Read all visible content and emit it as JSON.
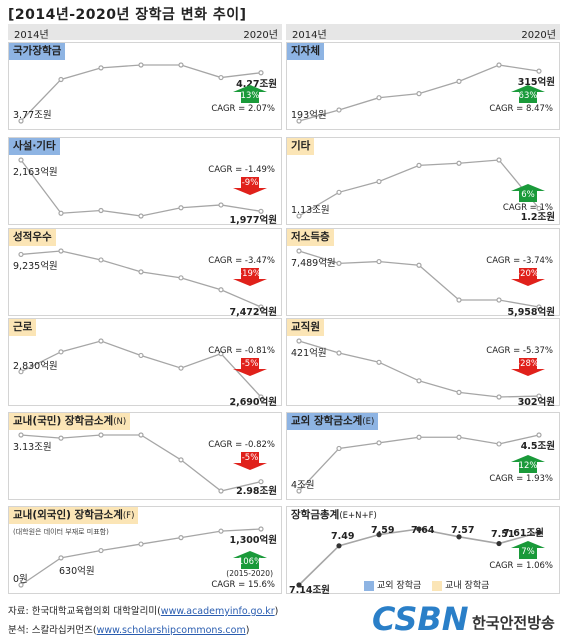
{
  "title": "[2014년-2020년 장학금 변화 추이]",
  "col_start": "2014년",
  "col_end": "2020년",
  "chart_data": [
    {
      "id": "national",
      "type": "line",
      "title": "국가장학금",
      "title_style": "blue",
      "x": [
        2014,
        2015,
        2016,
        2017,
        2018,
        2019,
        2020
      ],
      "values": [
        3.77,
        4.2,
        4.32,
        4.35,
        4.35,
        4.22,
        4.27
      ],
      "unit": "조원",
      "start_label": "3.77조원",
      "end_label": "4.27조원",
      "change": "13%",
      "direction": "up",
      "cagr": "CAGR = 2.07%"
    },
    {
      "id": "local_gov",
      "type": "line",
      "title": "지자체",
      "title_style": "blue",
      "x": [
        2014,
        2015,
        2016,
        2017,
        2018,
        2019,
        2020
      ],
      "values": [
        193,
        220,
        250,
        260,
        290,
        330,
        315
      ],
      "unit": "억원",
      "start_label": "193억원",
      "end_label": "315억원",
      "change": "63%",
      "direction": "up",
      "cagr": "CAGR = 8.47%"
    },
    {
      "id": "private",
      "type": "line",
      "title": "사설·기타",
      "title_style": "blue",
      "x": [
        2014,
        2015,
        2016,
        2017,
        2018,
        2019,
        2020
      ],
      "values": [
        2163,
        1970,
        1980,
        1960,
        1990,
        2000,
        1977
      ],
      "unit": "억원",
      "start_label": "2,163억원",
      "end_label": "1,977억원",
      "change": "-9%",
      "direction": "down",
      "cagr": "CAGR = -1.49%"
    },
    {
      "id": "other",
      "type": "line",
      "title": "기타",
      "title_style": "tan",
      "x": [
        2014,
        2015,
        2016,
        2017,
        2018,
        2019,
        2020
      ],
      "values": [
        1.13,
        1.35,
        1.45,
        1.6,
        1.62,
        1.65,
        1.2
      ],
      "unit": "조원",
      "start_label": "1.13조원",
      "end_label": "1.2조원",
      "change": "6%",
      "direction": "up",
      "cagr": "CAGR = 1%"
    },
    {
      "id": "merit",
      "type": "line",
      "title": "성적우수",
      "title_style": "tan",
      "x": [
        2014,
        2015,
        2016,
        2017,
        2018,
        2019,
        2020
      ],
      "values": [
        9235,
        9350,
        9050,
        8650,
        8450,
        8050,
        7472
      ],
      "unit": "억원",
      "start_label": "9,235억원",
      "end_label": "7,472억원",
      "change": "-19%",
      "direction": "down",
      "cagr": "CAGR = -3.47%"
    },
    {
      "id": "low_income",
      "type": "line",
      "title": "저소득층",
      "title_style": "tan",
      "x": [
        2014,
        2015,
        2016,
        2017,
        2018,
        2019,
        2020
      ],
      "values": [
        7489,
        7150,
        7200,
        7100,
        6150,
        6150,
        5958
      ],
      "unit": "억원",
      "start_label": "7,489억원",
      "end_label": "5,958억원",
      "change": "-20%",
      "direction": "down",
      "cagr": "CAGR = -3.74%"
    },
    {
      "id": "work",
      "type": "line",
      "title": "근로",
      "title_style": "tan",
      "x": [
        2014,
        2015,
        2016,
        2017,
        2018,
        2019,
        2020
      ],
      "values": [
        2830,
        2940,
        3000,
        2920,
        2850,
        2930,
        2690
      ],
      "unit": "억원",
      "start_label": "2,830억원",
      "end_label": "2,690억원",
      "change": "-5%",
      "direction": "down",
      "cagr": "CAGR = -0.81%"
    },
    {
      "id": "staff",
      "type": "line",
      "title": "교직원",
      "title_style": "tan",
      "x": [
        2014,
        2015,
        2016,
        2017,
        2018,
        2019,
        2020
      ],
      "values": [
        421,
        395,
        375,
        335,
        310,
        300,
        302
      ],
      "unit": "억원",
      "start_label": "421억원",
      "end_label": "302억원",
      "change": "-28%",
      "direction": "down",
      "cagr": "CAGR = -5.37%"
    },
    {
      "id": "internal_ex_national",
      "type": "line",
      "title": "교내(국민) 장학금소계",
      "title_suffix": "(N)",
      "title_style": "tan",
      "x": [
        2014,
        2015,
        2016,
        2017,
        2018,
        2019,
        2020
      ],
      "values": [
        3.13,
        3.12,
        3.13,
        3.13,
        3.05,
        2.95,
        2.98
      ],
      "unit": "조원",
      "start_label": "3.13조원",
      "end_label": "2.98조원",
      "change": "-5%",
      "direction": "down",
      "cagr": "CAGR = -0.82%"
    },
    {
      "id": "external",
      "type": "line",
      "title": "교외 장학금소계",
      "title_suffix": "(E)",
      "title_style": "blue",
      "x": [
        2014,
        2015,
        2016,
        2017,
        2018,
        2019,
        2020
      ],
      "values": [
        4.0,
        4.38,
        4.43,
        4.48,
        4.48,
        4.42,
        4.5
      ],
      "unit": "조원",
      "start_label": "4조원",
      "end_label": "4.5조원",
      "change": "12%",
      "direction": "up",
      "cagr": "CAGR = 1.93%"
    },
    {
      "id": "internal_ex_foreign",
      "type": "line",
      "title": "교내(외국인) 장학금소계",
      "title_suffix": "(F)",
      "title_style": "tan",
      "subtitle": "(대학원은 데이터 부재로 미표함)",
      "x": [
        2014,
        2015,
        2016,
        2017,
        2018,
        2019,
        2020
      ],
      "values": [
        0,
        630,
        800,
        950,
        1100,
        1250,
        1300
      ],
      "unit": "억원",
      "start_label": "0원",
      "second_label": "630억원",
      "end_label": "1,300억원",
      "change": "106%",
      "direction": "up",
      "cagr": "CAGR = 15.6%",
      "cagr_note": "(2015-2020)"
    },
    {
      "id": "total",
      "type": "line",
      "title": "장학금총계",
      "title_suffix": "(E+N+F)",
      "title_style": "plain",
      "x": [
        2014,
        2015,
        2016,
        2017,
        2018,
        2019,
        2020
      ],
      "values": [
        7.14,
        7.49,
        7.59,
        7.64,
        7.57,
        7.51,
        7.61
      ],
      "unit": "조원",
      "point_labels": [
        "7.14조원",
        "7.49",
        "7.59",
        "7.64",
        "7.57",
        "7.51",
        "7.61조원"
      ],
      "change": "7%",
      "direction": "up",
      "cagr": "CAGR = 1.06%"
    }
  ],
  "legend": [
    {
      "label": "교외 장학금",
      "color": "#8eb4e3"
    },
    {
      "label": "교내 장학금",
      "color": "#fbe5b6"
    }
  ],
  "footer": {
    "source_prefix": "자료: 한국대학교육협의회  대학알리미(",
    "source_link": "www.academyinfo.go.kr",
    "source_suffix": ")",
    "analysis_prefix": "분석: 스칼라십커먼즈(",
    "analysis_link": "www.scholarshipcommons.com",
    "analysis_suffix": ")"
  },
  "logo": {
    "text": "CSBN",
    "name": "한국안전방송"
  },
  "colors": {
    "line": "#a6a6a6",
    "up": "#1a9a3a",
    "down": "#e0211b"
  }
}
